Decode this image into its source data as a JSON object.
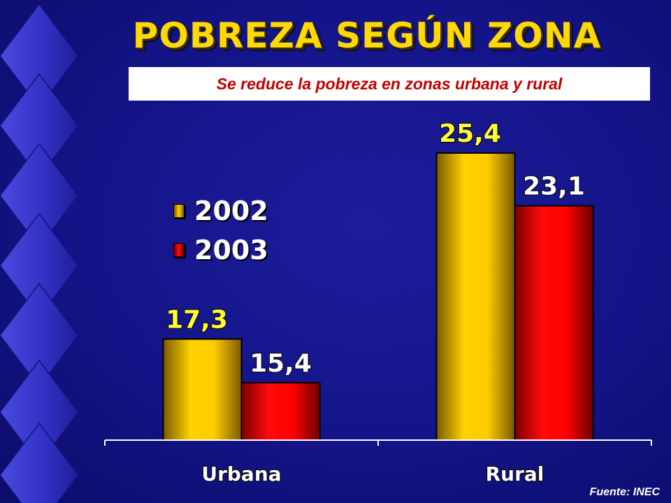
{
  "slide": {
    "title": "POBREZA SEGÚN ZONA",
    "subtitle": "Se reduce la pobreza en zonas urbana y rural",
    "source": "Fuente: INEC"
  },
  "colors": {
    "series_2002": "#ffcc00",
    "series_2003": "#ff0000",
    "label_2002": "#ffff33",
    "label_2003": "#ffffff"
  },
  "chart_data": {
    "type": "bar",
    "categories": [
      "Urbana",
      "Rural"
    ],
    "series": [
      {
        "name": "2002",
        "values": [
          17.3,
          25.4
        ],
        "labels": [
          "17,3",
          "25,4"
        ]
      },
      {
        "name": "2003",
        "values": [
          15.4,
          23.1
        ],
        "labels": [
          "15,4",
          "23,1"
        ]
      }
    ],
    "title": "",
    "xlabel": "",
    "ylabel": "",
    "ylim": [
      12.9,
      27.5
    ],
    "grid": false,
    "legend": "top-left"
  }
}
